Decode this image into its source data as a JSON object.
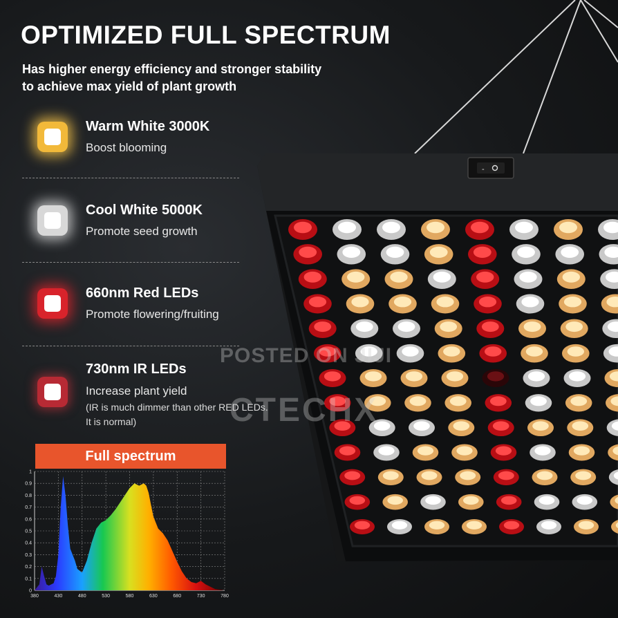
{
  "header": {
    "title": "OPTIMIZED FULL SPECTRUM",
    "subtitle_line1": "Has higher energy efficiency and stronger stability",
    "subtitle_line2": "to achieve max yield of plant growth"
  },
  "features": [
    {
      "name": "Warm White 3000K",
      "desc": "Boost blooming",
      "icon": "warm-white-led-icon",
      "color": "#f6c347"
    },
    {
      "name": "Cool White 5000K",
      "desc": "Promote seed growth",
      "icon": "cool-white-led-icon",
      "color": "#e9e9e9"
    },
    {
      "name": "660nm Red LEDs",
      "desc": "Promote flowering/fruiting",
      "icon": "red-led-icon",
      "color": "#e0242c"
    },
    {
      "name": "730nm IR LEDs",
      "desc": "Increase plant yield",
      "note1": "(IR is much dimmer than other RED LEDs.",
      "note2": "It is normal)",
      "icon": "ir-led-icon",
      "color": "#c0303a"
    }
  ],
  "watermark": {
    "line1": "POSTED ON JIJI",
    "line2": "CTECHX"
  },
  "chart_data": {
    "type": "area",
    "title": "Full spectrum",
    "xlabel": "",
    "ylabel": "",
    "x_ticks": [
      "380",
      "430",
      "480",
      "530",
      "580",
      "630",
      "680",
      "730",
      "780"
    ],
    "y_ticks": [
      "0",
      "0.1",
      "0.2",
      "0.3",
      "0.4",
      "0.5",
      "0.6",
      "0.7",
      "0.8",
      "0.9",
      "1"
    ],
    "xlim": [
      380,
      780
    ],
    "ylim": [
      0,
      1
    ],
    "series": [
      {
        "x": [
          380,
          390,
          395,
          400,
          405,
          410,
          420,
          425,
          430,
          435,
          440,
          445,
          450,
          455,
          460,
          465,
          470,
          480,
          490,
          500,
          510,
          520,
          530,
          540,
          550,
          560,
          570,
          580,
          590,
          600,
          605,
          610,
          615,
          620,
          625,
          630,
          640,
          650,
          660,
          670,
          680,
          690,
          700,
          710,
          720,
          730,
          740,
          760,
          780
        ],
        "y": [
          0.0,
          0.05,
          0.2,
          0.12,
          0.05,
          0.04,
          0.06,
          0.12,
          0.3,
          0.7,
          0.96,
          0.8,
          0.55,
          0.35,
          0.3,
          0.25,
          0.18,
          0.15,
          0.25,
          0.4,
          0.52,
          0.57,
          0.59,
          0.63,
          0.68,
          0.74,
          0.8,
          0.86,
          0.9,
          0.88,
          0.89,
          0.9,
          0.88,
          0.82,
          0.72,
          0.62,
          0.52,
          0.48,
          0.42,
          0.33,
          0.24,
          0.16,
          0.1,
          0.07,
          0.06,
          0.08,
          0.05,
          0.01,
          0.0
        ]
      }
    ]
  }
}
